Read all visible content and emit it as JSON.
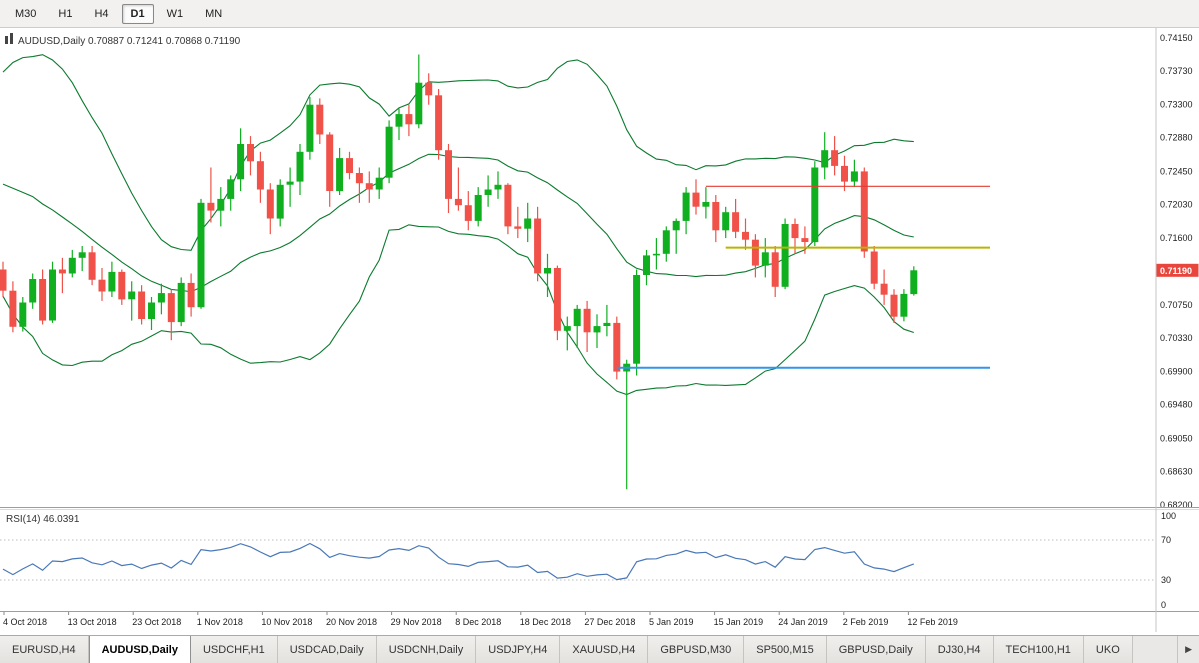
{
  "toolbar": {
    "timeframes": [
      {
        "label": "M30",
        "active": false
      },
      {
        "label": "H1",
        "active": false
      },
      {
        "label": "H4",
        "active": false
      },
      {
        "label": "D1",
        "active": true
      },
      {
        "label": "W1",
        "active": false
      },
      {
        "label": "MN",
        "active": false
      }
    ]
  },
  "chart": {
    "symbol_title": "AUDUSD,Daily 0.70887 0.71241 0.70868 0.71190",
    "current_price": "0.71190",
    "price_scale": [
      "0.74150",
      "0.73730",
      "0.73300",
      "0.72880",
      "0.72450",
      "0.72030",
      "0.71600",
      "0.71190",
      "0.70750",
      "0.70330",
      "0.69900",
      "0.69480",
      "0.69050",
      "0.68630",
      "0.68200"
    ],
    "colors": {
      "up": "#0faf20",
      "down": "#f0524a",
      "bands": "#0b7a2e",
      "rsi_line": "#4878b8",
      "badge": "#e8463c",
      "hline_red": "#e23b33",
      "hline_yellow": "#b9b400",
      "hline_blue": "#3096e8"
    }
  },
  "rsi": {
    "label": "RSI(14) 46.0391",
    "value": 46.0391,
    "scale": [
      "100",
      "70",
      "30",
      "0"
    ],
    "levels": [
      70,
      30
    ]
  },
  "date_axis": [
    "4 Oct 2018",
    "13 Oct 2018",
    "23 Oct 2018",
    "1 Nov 2018",
    "10 Nov 2018",
    "20 Nov 2018",
    "29 Nov 2018",
    "8 Dec 2018",
    "18 Dec 2018",
    "27 Dec 2018",
    "5 Jan 2019",
    "15 Jan 2019",
    "24 Jan 2019",
    "2 Feb 2019",
    "12 Feb 2019"
  ],
  "tabbar": {
    "tabs": [
      {
        "label": "EURUSD,H4",
        "active": false
      },
      {
        "label": "AUDUSD,Daily",
        "active": true
      },
      {
        "label": "USDCHF,H1",
        "active": false
      },
      {
        "label": "USDCAD,Daily",
        "active": false
      },
      {
        "label": "USDCNH,Daily",
        "active": false
      },
      {
        "label": "USDJPY,H4",
        "active": false
      },
      {
        "label": "XAUUSD,H4",
        "active": false
      },
      {
        "label": "GBPUSD,M30",
        "active": false
      },
      {
        "label": "SP500,M15",
        "active": false
      },
      {
        "label": "GBPUSD,Daily",
        "active": false
      },
      {
        "label": "DJ30,H4",
        "active": false
      },
      {
        "label": "TECH100,H1",
        "active": false
      },
      {
        "label": "UKO",
        "active": false
      }
    ],
    "scroll_icon": "▶"
  },
  "chart_data": {
    "type": "candlestick",
    "title": "AUDUSD,Daily",
    "symbol": "AUDUSD",
    "timeframe": "Daily",
    "ohlc_label": {
      "open": "0.70887",
      "high": "0.71241",
      "low": "0.70868",
      "close": "0.71190"
    },
    "ylim": [
      0.682,
      0.7428
    ],
    "indicators": [
      {
        "name": "Bollinger Bands",
        "period": 20,
        "deviation": 2
      },
      {
        "name": "RSI",
        "period": 14,
        "value": 46.0391,
        "levels": [
          70,
          30
        ]
      }
    ],
    "hlines": [
      {
        "name": "resistance-line-red",
        "price": 0.7226,
        "color": "#e23b33",
        "width": 1.2,
        "start_index": 71
      },
      {
        "name": "support-line-yellow",
        "price": 0.7148,
        "color": "#b9b400",
        "width": 2,
        "start_index": 73
      },
      {
        "name": "support-line-blue",
        "price": 0.6995,
        "color": "#3096e8",
        "width": 2,
        "start_index": 62
      }
    ],
    "pre_closes": [
      0.715,
      0.7185,
      0.7215,
      0.7245,
      0.727,
      0.7295,
      0.7315,
      0.733,
      0.731,
      0.729,
      0.73,
      0.728,
      0.726,
      0.724,
      0.7215,
      0.719,
      0.716,
      0.713,
      0.7103
    ],
    "candles": [
      [
        0.712,
        0.713,
        0.7085,
        0.7093
      ],
      [
        0.7093,
        0.7105,
        0.704,
        0.7047
      ],
      [
        0.7047,
        0.7085,
        0.7041,
        0.7078
      ],
      [
        0.7078,
        0.7115,
        0.707,
        0.7108
      ],
      [
        0.7108,
        0.712,
        0.705,
        0.7055
      ],
      [
        0.7055,
        0.713,
        0.7052,
        0.712
      ],
      [
        0.712,
        0.7135,
        0.709,
        0.7115
      ],
      [
        0.7115,
        0.7145,
        0.711,
        0.7135
      ],
      [
        0.7135,
        0.715,
        0.7118,
        0.7142
      ],
      [
        0.7142,
        0.715,
        0.71,
        0.7107
      ],
      [
        0.7107,
        0.7122,
        0.708,
        0.7092
      ],
      [
        0.7092,
        0.713,
        0.7085,
        0.7117
      ],
      [
        0.7117,
        0.712,
        0.7075,
        0.7082
      ],
      [
        0.7082,
        0.7105,
        0.7055,
        0.7092
      ],
      [
        0.7092,
        0.71,
        0.705,
        0.7057
      ],
      [
        0.7057,
        0.7085,
        0.7043,
        0.7078
      ],
      [
        0.7078,
        0.7102,
        0.7063,
        0.709
      ],
      [
        0.709,
        0.7095,
        0.703,
        0.7053
      ],
      [
        0.7053,
        0.711,
        0.7048,
        0.7103
      ],
      [
        0.7103,
        0.7115,
        0.706,
        0.7072
      ],
      [
        0.7072,
        0.721,
        0.707,
        0.7205
      ],
      [
        0.7205,
        0.725,
        0.718,
        0.7195
      ],
      [
        0.7195,
        0.7225,
        0.7175,
        0.721
      ],
      [
        0.721,
        0.724,
        0.7195,
        0.7235
      ],
      [
        0.7235,
        0.73,
        0.722,
        0.728
      ],
      [
        0.728,
        0.729,
        0.724,
        0.7258
      ],
      [
        0.7258,
        0.727,
        0.7205,
        0.7222
      ],
      [
        0.7222,
        0.723,
        0.7165,
        0.7185
      ],
      [
        0.7185,
        0.7235,
        0.7175,
        0.7228
      ],
      [
        0.7228,
        0.725,
        0.72,
        0.7232
      ],
      [
        0.7232,
        0.728,
        0.7215,
        0.727
      ],
      [
        0.727,
        0.734,
        0.726,
        0.733
      ],
      [
        0.733,
        0.7338,
        0.728,
        0.7292
      ],
      [
        0.7292,
        0.7295,
        0.72,
        0.722
      ],
      [
        0.722,
        0.7275,
        0.7215,
        0.7262
      ],
      [
        0.7262,
        0.727,
        0.7235,
        0.7243
      ],
      [
        0.7243,
        0.725,
        0.7205,
        0.723
      ],
      [
        0.723,
        0.7245,
        0.7205,
        0.7222
      ],
      [
        0.7222,
        0.725,
        0.721,
        0.7237
      ],
      [
        0.7237,
        0.731,
        0.723,
        0.7302
      ],
      [
        0.7302,
        0.7325,
        0.7285,
        0.7318
      ],
      [
        0.7318,
        0.733,
        0.729,
        0.7305
      ],
      [
        0.7305,
        0.7394,
        0.73,
        0.7358
      ],
      [
        0.7358,
        0.737,
        0.733,
        0.7342
      ],
      [
        0.7342,
        0.735,
        0.726,
        0.7272
      ],
      [
        0.7272,
        0.728,
        0.7192,
        0.721
      ],
      [
        0.721,
        0.725,
        0.7195,
        0.7202
      ],
      [
        0.7202,
        0.722,
        0.717,
        0.7182
      ],
      [
        0.7182,
        0.7225,
        0.7175,
        0.7215
      ],
      [
        0.7215,
        0.724,
        0.72,
        0.7222
      ],
      [
        0.7222,
        0.7245,
        0.721,
        0.7228
      ],
      [
        0.7228,
        0.723,
        0.7165,
        0.7175
      ],
      [
        0.7175,
        0.72,
        0.716,
        0.7172
      ],
      [
        0.7172,
        0.7205,
        0.7155,
        0.7185
      ],
      [
        0.7185,
        0.72,
        0.7105,
        0.7115
      ],
      [
        0.7115,
        0.714,
        0.7085,
        0.7122
      ],
      [
        0.7122,
        0.7125,
        0.703,
        0.7042
      ],
      [
        0.7042,
        0.706,
        0.7017,
        0.7048
      ],
      [
        0.7048,
        0.7075,
        0.702,
        0.707
      ],
      [
        0.707,
        0.708,
        0.7015,
        0.704
      ],
      [
        0.704,
        0.7063,
        0.702,
        0.7048
      ],
      [
        0.7048,
        0.7075,
        0.7035,
        0.7052
      ],
      [
        0.7052,
        0.706,
        0.698,
        0.699
      ],
      [
        0.699,
        0.7005,
        0.684,
        0.7
      ],
      [
        0.7,
        0.712,
        0.6985,
        0.7113
      ],
      [
        0.7113,
        0.7145,
        0.71,
        0.7138
      ],
      [
        0.7138,
        0.716,
        0.712,
        0.714
      ],
      [
        0.714,
        0.7175,
        0.713,
        0.717
      ],
      [
        0.717,
        0.7185,
        0.714,
        0.7182
      ],
      [
        0.7182,
        0.7225,
        0.7165,
        0.7218
      ],
      [
        0.7218,
        0.7235,
        0.719,
        0.72
      ],
      [
        0.72,
        0.7225,
        0.7185,
        0.7206
      ],
      [
        0.7206,
        0.7215,
        0.7155,
        0.717
      ],
      [
        0.717,
        0.72,
        0.716,
        0.7193
      ],
      [
        0.7193,
        0.721,
        0.716,
        0.7168
      ],
      [
        0.7168,
        0.7185,
        0.7145,
        0.7158
      ],
      [
        0.7158,
        0.7165,
        0.711,
        0.7125
      ],
      [
        0.7125,
        0.716,
        0.711,
        0.7142
      ],
      [
        0.7142,
        0.715,
        0.7085,
        0.7098
      ],
      [
        0.7098,
        0.7185,
        0.7095,
        0.7178
      ],
      [
        0.7178,
        0.7185,
        0.714,
        0.716
      ],
      [
        0.716,
        0.7175,
        0.714,
        0.7155
      ],
      [
        0.7155,
        0.7258,
        0.715,
        0.725
      ],
      [
        0.725,
        0.7295,
        0.7235,
        0.7272
      ],
      [
        0.7272,
        0.729,
        0.724,
        0.7252
      ],
      [
        0.7252,
        0.7265,
        0.722,
        0.7232
      ],
      [
        0.7232,
        0.726,
        0.7225,
        0.7245
      ],
      [
        0.7245,
        0.725,
        0.7135,
        0.7143
      ],
      [
        0.7143,
        0.715,
        0.7095,
        0.7102
      ],
      [
        0.7102,
        0.712,
        0.7075,
        0.7088
      ],
      [
        0.7088,
        0.7095,
        0.7052,
        0.706
      ],
      [
        0.706,
        0.7095,
        0.7054,
        0.7089
      ],
      [
        0.70887,
        0.71241,
        0.70868,
        0.7119
      ]
    ]
  }
}
